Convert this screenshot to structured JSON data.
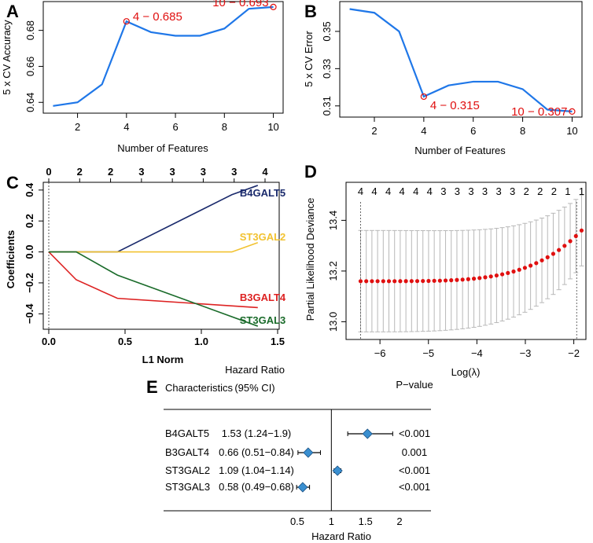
{
  "panels": {
    "A": "A",
    "B": "B",
    "C": "C",
    "D": "D",
    "E": "E"
  },
  "chart_data": [
    {
      "id": "A",
      "type": "line",
      "xlabel": "Number of Features",
      "ylabel": "5 x CV Accuracy",
      "x": [
        1,
        2,
        3,
        4,
        5,
        6,
        7,
        8,
        9,
        10
      ],
      "y": [
        0.638,
        0.64,
        0.65,
        0.685,
        0.679,
        0.677,
        0.677,
        0.681,
        0.692,
        0.693
      ],
      "xlim": [
        0.6,
        10.4
      ],
      "ylim": [
        0.634,
        0.696
      ],
      "xticks": [
        2,
        4,
        6,
        8,
        10
      ],
      "yticks": [
        0.64,
        0.66,
        0.68
      ],
      "ytick_labels": [
        "0.64",
        "0.66",
        "0.68"
      ],
      "highlights": [
        {
          "x": 4,
          "y": 0.685,
          "label": "4 − 0.685"
        },
        {
          "x": 10,
          "y": 0.693,
          "label": "10 − 0.693"
        }
      ],
      "color": "#1f77e8"
    },
    {
      "id": "B",
      "type": "line",
      "xlabel": "Number of Features",
      "ylabel": "5 x CV Error",
      "x": [
        1,
        2,
        3,
        4,
        5,
        6,
        7,
        8,
        9,
        10
      ],
      "y": [
        0.362,
        0.36,
        0.35,
        0.315,
        0.321,
        0.323,
        0.323,
        0.319,
        0.308,
        0.307
      ],
      "xlim": [
        0.6,
        10.4
      ],
      "ylim": [
        0.304,
        0.366
      ],
      "xticks": [
        2,
        4,
        6,
        8,
        10
      ],
      "yticks": [
        0.31,
        0.33,
        0.35
      ],
      "ytick_labels": [
        "0.31",
        "0.33",
        "0.35"
      ],
      "highlights": [
        {
          "x": 4,
          "y": 0.315,
          "label": "4 − 0.315"
        },
        {
          "x": 10,
          "y": 0.307,
          "label": "10 − 0.307"
        }
      ],
      "color": "#1f77e8"
    },
    {
      "id": "C",
      "type": "line",
      "xlabel": "L1 Norm",
      "ylabel": "Coefficients",
      "xlim": [
        0,
        1.5
      ],
      "ylim": [
        -0.5,
        0.45
      ],
      "xticks": [
        0.0,
        0.5,
        1.0,
        1.5
      ],
      "xtick_labels": [
        "0.0",
        "0.5",
        "1.0",
        "1.5"
      ],
      "yticks": [
        -0.4,
        -0.2,
        0.0,
        0.2,
        0.4
      ],
      "ytick_labels": [
        "−0.4",
        "−0.2",
        "0.0",
        "0.2",
        "0.4"
      ],
      "top_ticks_x": [
        0,
        0.2,
        0.4,
        0.6,
        0.8,
        1.0,
        1.2,
        1.4
      ],
      "top_ticks_labels": [
        "0",
        "2",
        "2",
        "3",
        "3",
        "3",
        "3",
        "4"
      ],
      "series": [
        {
          "name": "B4GALT5",
          "color": "#1a2a6c",
          "points": [
            [
              0,
              0
            ],
            [
              0.45,
              0
            ],
            [
              1.2,
              0.37
            ],
            [
              1.37,
              0.43
            ]
          ]
        },
        {
          "name": "ST3GAL2",
          "color": "#f2c230",
          "points": [
            [
              0,
              0
            ],
            [
              1.2,
              0
            ],
            [
              1.37,
              0.06
            ]
          ]
        },
        {
          "name": "B3GALT4",
          "color": "#dd2222",
          "points": [
            [
              0,
              0
            ],
            [
              0.18,
              -0.18
            ],
            [
              0.45,
              -0.3
            ],
            [
              1.37,
              -0.36
            ]
          ]
        },
        {
          "name": "ST3GAL3",
          "color": "#1a6b2a",
          "points": [
            [
              0,
              0
            ],
            [
              0.18,
              0
            ],
            [
              0.45,
              -0.15
            ],
            [
              1.37,
              -0.48
            ]
          ]
        }
      ]
    },
    {
      "id": "D",
      "type": "scatter",
      "xlabel": "Log(λ)",
      "ylabel": "Partial Likelihood Deviance",
      "xlim": [
        -6.7,
        -1.75
      ],
      "ylim": [
        12.93,
        13.55
      ],
      "xticks": [
        -6,
        -5,
        -4,
        -3,
        -2
      ],
      "xtick_labels": [
        "−6",
        "−5",
        "−4",
        "−3",
        "−2"
      ],
      "yticks": [
        13.0,
        13.2,
        13.4
      ],
      "ytick_labels": [
        "13.0",
        "13.2",
        "13.4"
      ],
      "top_labels": [
        "4",
        "4",
        "4",
        "4",
        "4",
        "4",
        "3",
        "3",
        "3",
        "3",
        "3",
        "3",
        "2",
        "2",
        "2",
        "1",
        "1"
      ],
      "vlines": [
        -6.4,
        -1.94
      ],
      "x_start": -6.4,
      "x_end": -1.84,
      "n_points": 40,
      "curve_note": "mean deviance ~13.16 flat, rising to 13.36 at right",
      "point_color": "#e01010",
      "errorbar_color": "#b8b8b8"
    },
    {
      "id": "E",
      "type": "table",
      "header": {
        "characteristics": "Characteristics",
        "hr_line1": "Hazard Ratio",
        "hr_line2": "(95% CI)",
        "pvalue": "P−value"
      },
      "xlabel": "Hazard Ratio",
      "xlim": [
        0,
        2.6
      ],
      "xticks": [
        0.5,
        1,
        1.5,
        2
      ],
      "xtick_labels": [
        "0.5",
        "1",
        "1.5",
        "2"
      ],
      "rows": [
        {
          "name": "B4GALT5",
          "hr_text": "1.53 (1.24−1.9)",
          "hr": 1.53,
          "lo": 1.24,
          "hi": 1.9,
          "p": "<0.001"
        },
        {
          "name": "B3GALT4",
          "hr_text": "0.66 (0.51−0.84)",
          "hr": 0.66,
          "lo": 0.51,
          "hi": 0.84,
          "p": "0.001"
        },
        {
          "name": "ST3GAL2",
          "hr_text": "1.09 (1.04−1.14)",
          "hr": 1.09,
          "lo": 1.04,
          "hi": 1.14,
          "p": "<0.001"
        },
        {
          "name": "ST3GAL3",
          "hr_text": "0.58 (0.49−0.68)",
          "hr": 0.58,
          "lo": 0.49,
          "hi": 0.68,
          "p": "<0.001"
        }
      ],
      "marker_color": "#3a8fd0"
    }
  ]
}
